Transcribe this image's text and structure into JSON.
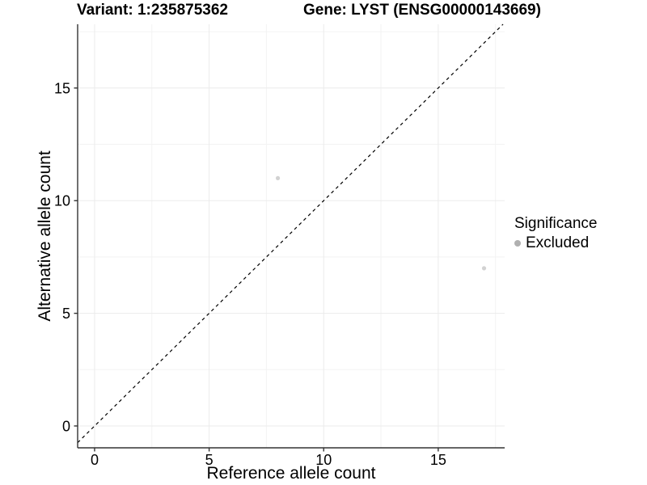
{
  "chart_data": {
    "type": "scatter",
    "title_left": "Variant: 1:235875362",
    "title_right": "Gene: LYST (ENSG00000143669)",
    "xlabel": "Reference allele count",
    "ylabel": "Alternative allele count",
    "xlim": [
      -0.74,
      17.9
    ],
    "ylim": [
      -0.97,
      17.83
    ],
    "x_ticks": [
      0,
      5,
      10,
      15
    ],
    "y_ticks": [
      0,
      5,
      10,
      15
    ],
    "x_minor_ticks": [
      2.5,
      7.5,
      12.5,
      17.5
    ],
    "y_minor_ticks": [
      2.5,
      7.5,
      12.5,
      17.5
    ],
    "grid": "on",
    "series": [
      {
        "name": "Excluded",
        "color": "#d2d2d2",
        "points": [
          [
            8,
            11
          ],
          [
            17,
            7
          ]
        ]
      }
    ],
    "reference_line": {
      "kind": "identity y=x",
      "style": "dashed",
      "color": "#000000"
    },
    "legend": {
      "title": "Significance",
      "position": "right",
      "items": [
        {
          "label": "Excluded",
          "marker_color": "#b0b0b0"
        }
      ]
    }
  },
  "colors": {
    "background": "#ffffff",
    "axis_line": "#333333",
    "tick_mark": "#333333",
    "major_grid": "#ebebeb",
    "minor_grid": "#f3f3f3",
    "tick_label": "#000000"
  }
}
